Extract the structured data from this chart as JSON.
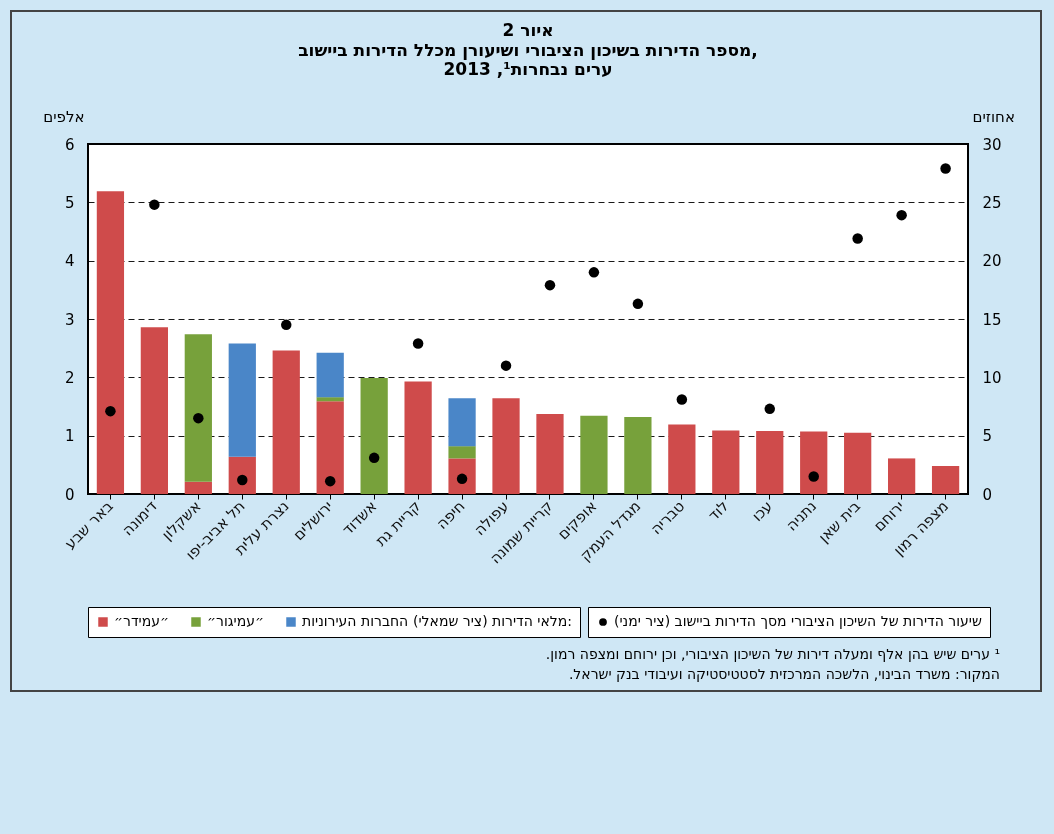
{
  "chart_data": {
    "type": "bar",
    "title": "איור 2",
    "subtitle": [
      "מספר הדירות בשיכון הציבורי ושיעורן מכלל הדירות ביישוב,",
      "ערים נבחרות¹, 2013"
    ],
    "ylabel": "אלפים",
    "y2label": "אחוזים",
    "legend_title": "מלאי הדירות (ציר שמאלי):",
    "categories": [
      "באר שבע",
      "דימונה",
      "אשקלון",
      "תל אביב-יפו",
      "נצרת עלית",
      "ירושלים",
      "אשדוד",
      "קריית גת",
      "חיפה",
      "עפולה",
      "קריית שמונה",
      "אופקים",
      "מגדל העמק",
      "טבריה",
      "לוד",
      "עכו",
      "נתניה",
      "בית שאן",
      "ירוחם",
      "מצפה רמון"
    ],
    "stacked": true,
    "series": [
      {
        "name": "״עמידר״",
        "color": "#cf4b4b",
        "values": [
          5.19,
          2.86,
          0.21,
          0.64,
          2.46,
          1.59,
          null,
          1.93,
          0.61,
          1.64,
          1.37,
          null,
          null,
          1.19,
          1.09,
          1.08,
          1.07,
          1.05,
          0.61,
          0.48
        ]
      },
      {
        "name": "״עמיגור״",
        "color": "#77a13b",
        "values": [
          null,
          null,
          2.53,
          null,
          null,
          0.07,
          1.99,
          null,
          0.21,
          null,
          null,
          1.34,
          1.32,
          null,
          null,
          null,
          null,
          null,
          null,
          null
        ]
      },
      {
        "name": "החברות העירוניות",
        "color": "#4a86c8",
        "values": [
          null,
          null,
          null,
          1.94,
          null,
          0.76,
          null,
          null,
          0.82,
          null,
          null,
          null,
          null,
          null,
          null,
          null,
          null,
          null,
          null,
          null
        ]
      },
      {
        "name": "שיעור הדירות של השיכון הציבורי מסך הדירות ביישוב (ציר ימני)",
        "type": "scatter",
        "axis": "y2",
        "marker": "circle",
        "color": "#000000",
        "values": [
          7.1,
          24.8,
          6.5,
          1.2,
          14.5,
          1.1,
          3.1,
          12.9,
          1.3,
          11.0,
          17.9,
          19.0,
          16.3,
          8.1,
          null,
          7.3,
          1.5,
          21.9,
          23.9,
          27.9
        ]
      }
    ],
    "ylim": [
      0,
      6
    ],
    "yticks": [
      0,
      1,
      2,
      3,
      4,
      5,
      6
    ],
    "y2lim": [
      0,
      30
    ],
    "y2ticks": [
      0,
      5,
      10,
      15,
      20,
      25,
      30
    ],
    "grid": "y",
    "legend": "bottom",
    "annotations": [
      "¹ ערים שיש בהן אלף ומעלה דירות של השיכון הציבורי, וכן ירוחם ומצפה רמון.",
      "המקור: משרד הבינוי, הלשכה המרכזית לסטטיסטיקה ועיבודי בנק ישראל."
    ]
  }
}
